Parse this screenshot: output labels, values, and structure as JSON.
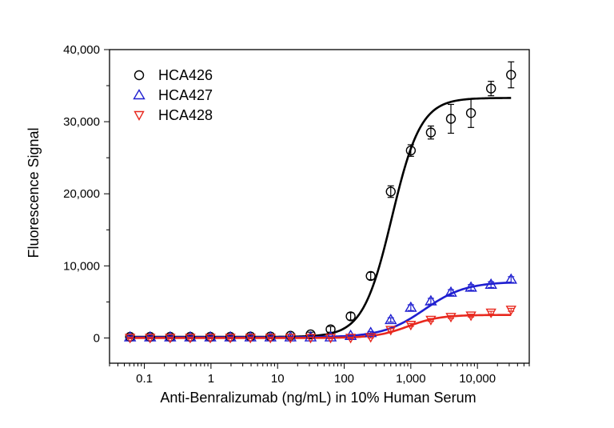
{
  "chart_data": {
    "type": "scatter",
    "title": "",
    "xlabel": "Anti-Benralizumab (ng/mL) in 10% Human Serum",
    "ylabel": "Fluorescence Signal",
    "x_scale": "log",
    "xlim": [
      0.03,
      60000
    ],
    "ylim": [
      -3500,
      40000
    ],
    "grid": false,
    "legend_position": "top-left",
    "x_ticks": [
      {
        "value": 0.1,
        "label": "0.1"
      },
      {
        "value": 1,
        "label": "1"
      },
      {
        "value": 10,
        "label": "10"
      },
      {
        "value": 100,
        "label": "100"
      },
      {
        "value": 1000,
        "label": "1,000"
      },
      {
        "value": 10000,
        "label": "10,000"
      }
    ],
    "y_ticks": [
      {
        "value": 0,
        "label": "0"
      },
      {
        "value": 10000,
        "label": "10,000"
      },
      {
        "value": 20000,
        "label": "20,000"
      },
      {
        "value": 30000,
        "label": "30,000"
      },
      {
        "value": 40000,
        "label": "40,000"
      }
    ],
    "x": [
      0.061,
      0.122,
      0.244,
      0.488,
      0.977,
      1.95,
      3.91,
      7.81,
      15.6,
      31.3,
      62.5,
      125,
      250,
      500,
      1000,
      2000,
      4000,
      8000,
      16000,
      32000
    ],
    "series": [
      {
        "name": "HCA426",
        "marker": "circle",
        "color": "#000000",
        "values": [
          150,
          150,
          150,
          150,
          150,
          150,
          200,
          200,
          300,
          500,
          1200,
          3000,
          8600,
          20300,
          26000,
          28500,
          30400,
          31200,
          34600,
          36500
        ],
        "errors": [
          200,
          200,
          200,
          200,
          200,
          200,
          200,
          200,
          200,
          300,
          400,
          500,
          500,
          800,
          800,
          900,
          2000,
          2000,
          1000,
          1800
        ],
        "fit": {
          "bottom": 150,
          "top": 33300,
          "ec50": 520,
          "hill": 2.0
        }
      },
      {
        "name": "HCA427",
        "marker": "triangle-up",
        "color": "#1f1fd0",
        "values": [
          100,
          100,
          100,
          100,
          100,
          100,
          100,
          100,
          100,
          100,
          100,
          300,
          700,
          2500,
          4200,
          5100,
          6300,
          7000,
          7400,
          8100
        ],
        "errors": [
          150,
          150,
          150,
          150,
          150,
          150,
          150,
          150,
          150,
          150,
          150,
          150,
          200,
          300,
          400,
          400,
          400,
          400,
          400,
          400
        ],
        "fit": {
          "bottom": 100,
          "top": 7800,
          "ec50": 1600,
          "hill": 1.4
        }
      },
      {
        "name": "HCA428",
        "marker": "triangle-down",
        "color": "#e8281e",
        "values": [
          0,
          0,
          0,
          0,
          0,
          0,
          0,
          0,
          0,
          0,
          0,
          0,
          100,
          1100,
          1800,
          2500,
          2900,
          3100,
          3500,
          3900
        ],
        "errors": [
          100,
          100,
          100,
          100,
          100,
          100,
          100,
          100,
          100,
          100,
          100,
          100,
          100,
          200,
          200,
          200,
          200,
          200,
          200,
          200
        ],
        "fit": {
          "bottom": 0,
          "top": 3200,
          "ec50": 900,
          "hill": 1.8
        }
      }
    ]
  }
}
